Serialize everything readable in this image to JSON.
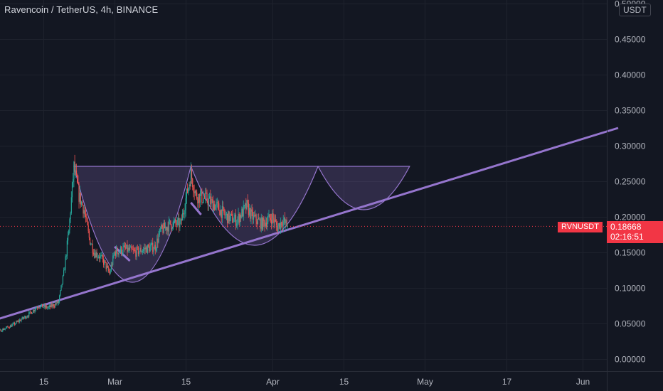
{
  "header": {
    "title": "Ravencoin / TetherUS, 4h, BINANCE"
  },
  "axis": {
    "unit_badge": "USDT"
  },
  "price": {
    "symbol": "RVNUSDT",
    "value": "0.18668",
    "countdown": "02:16:51"
  },
  "colors": {
    "background": "#131722",
    "grid": "#1e222d",
    "up": "#26a69a",
    "down": "#ef5350",
    "drawing": "#9575cd",
    "price_line": "#f23645"
  },
  "chart_data": {
    "type": "candlestick",
    "ylim": [
      -0.02,
      0.5
    ],
    "y_ticks": [
      {
        "value": 0.5,
        "label": "0.50000"
      },
      {
        "value": 0.45,
        "label": "0.45000"
      },
      {
        "value": 0.4,
        "label": "0.40000"
      },
      {
        "value": 0.35,
        "label": "0.35000"
      },
      {
        "value": 0.3,
        "label": "0.30000"
      },
      {
        "value": 0.25,
        "label": "0.25000"
      },
      {
        "value": 0.2,
        "label": "0.20000"
      },
      {
        "value": 0.15,
        "label": "0.15000"
      },
      {
        "value": 0.1,
        "label": "0.10000"
      },
      {
        "value": 0.05,
        "label": "0.05000"
      },
      {
        "value": 0.0,
        "label": "0.00000"
      }
    ],
    "x_ticks": [
      {
        "date": "2021-02-15",
        "label": "15"
      },
      {
        "date": "2021-03-01",
        "label": "Mar"
      },
      {
        "date": "2021-03-15",
        "label": "15"
      },
      {
        "date": "2021-04-01",
        "label": "Apr"
      },
      {
        "date": "2021-04-15",
        "label": "15"
      },
      {
        "date": "2021-05-01",
        "label": "May"
      },
      {
        "date": "2021-05-17",
        "label": "17"
      },
      {
        "date": "2021-06-01",
        "label": "Jun"
      }
    ],
    "last_price": 0.18668,
    "price_path": [
      [
        "2021-02-01",
        0.028
      ],
      [
        "2021-02-05",
        0.035
      ],
      [
        "2021-02-09",
        0.048
      ],
      [
        "2021-02-12",
        0.062
      ],
      [
        "2021-02-14",
        0.075
      ],
      [
        "2021-02-16",
        0.072
      ],
      [
        "2021-02-18",
        0.08
      ],
      [
        "2021-02-19",
        0.12
      ],
      [
        "2021-02-20",
        0.18
      ],
      [
        "2021-02-21",
        0.27
      ],
      [
        "2021-02-22",
        0.23
      ],
      [
        "2021-02-23",
        0.21
      ],
      [
        "2021-02-24",
        0.17
      ],
      [
        "2021-02-25",
        0.15
      ],
      [
        "2021-02-26",
        0.145
      ],
      [
        "2021-02-27",
        0.135
      ],
      [
        "2021-02-28",
        0.12
      ],
      [
        "2021-03-01",
        0.15
      ],
      [
        "2021-03-03",
        0.155
      ],
      [
        "2021-03-05",
        0.15
      ],
      [
        "2021-03-07",
        0.155
      ],
      [
        "2021-03-09",
        0.158
      ],
      [
        "2021-03-10",
        0.18
      ],
      [
        "2021-03-12",
        0.19
      ],
      [
        "2021-03-14",
        0.19
      ],
      [
        "2021-03-16",
        0.26
      ],
      [
        "2021-03-17",
        0.23
      ],
      [
        "2021-03-19",
        0.225
      ],
      [
        "2021-03-21",
        0.215
      ],
      [
        "2021-03-23",
        0.2
      ],
      [
        "2021-03-25",
        0.195
      ],
      [
        "2021-03-27",
        0.215
      ],
      [
        "2021-03-28",
        0.2
      ],
      [
        "2021-03-30",
        0.19
      ],
      [
        "2021-04-01",
        0.2
      ],
      [
        "2021-04-02",
        0.185
      ],
      [
        "2021-04-03",
        0.195
      ],
      [
        "2021-04-04",
        0.18668
      ]
    ],
    "drawings": {
      "trendline": [
        [
          "2021-02-01",
          0.045
        ],
        [
          "2021-06-08",
          0.325
        ]
      ],
      "rim_level": 0.271,
      "cups": [
        {
          "start": "2021-02-21",
          "end": "2021-03-16",
          "bottom": 0.108
        },
        {
          "start": "2021-03-16",
          "end": "2021-04-10",
          "bottom": 0.16
        },
        {
          "start": "2021-04-10",
          "end": "2021-04-28",
          "bottom": 0.21
        }
      ],
      "flags": [
        [
          [
            "2021-03-01",
            0.158
          ],
          [
            "2021-03-04",
            0.138
          ]
        ],
        [
          [
            "2021-03-16",
            0.22
          ],
          [
            "2021-03-18",
            0.203
          ]
        ]
      ]
    }
  }
}
